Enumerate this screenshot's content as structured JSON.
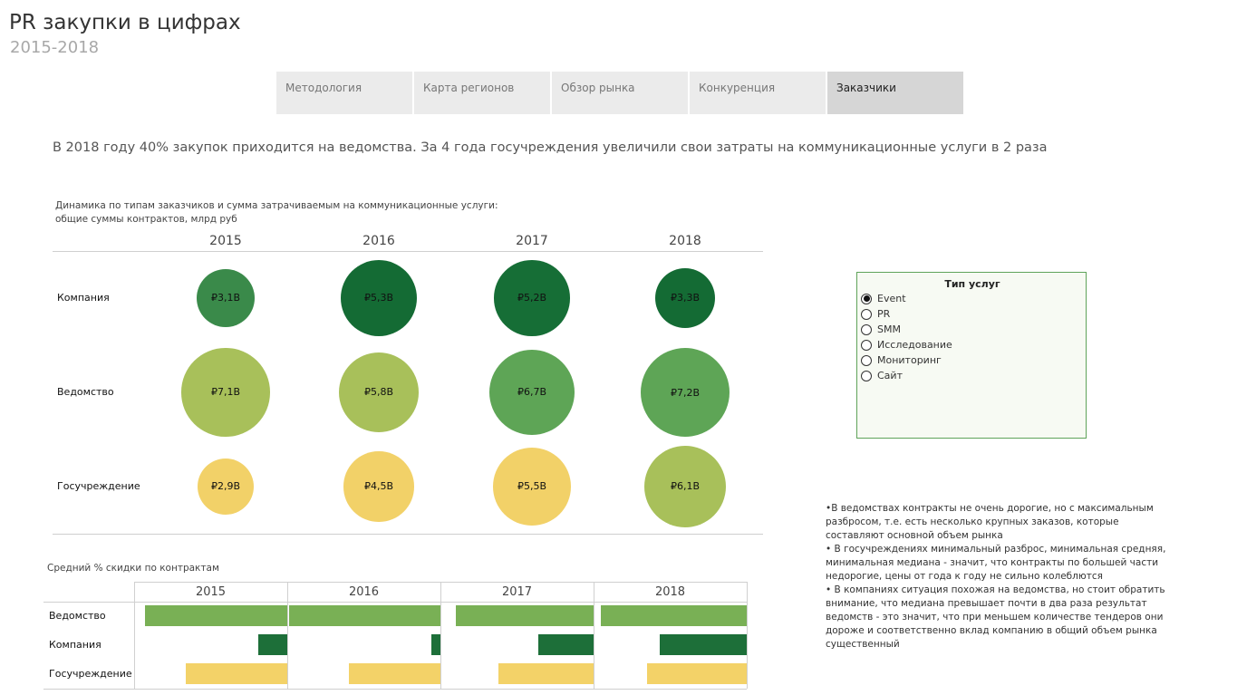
{
  "header": {
    "title": "PR закупки в цифрах",
    "subtitle": "2015-2018"
  },
  "tabs": [
    {
      "label": "Методология",
      "active": false
    },
    {
      "label": "Карта регионов",
      "active": false
    },
    {
      "label": "Обзор рынка",
      "active": false
    },
    {
      "label": "Конкуренция",
      "active": false
    },
    {
      "label": "Заказчики",
      "active": true
    }
  ],
  "headline": "В 2018 году 40% закупок приходится на ведомства. За 4 года госучреждения увеличили свои затраты на коммуникационные услуги в 2 раза",
  "chart_data": [
    {
      "type": "bubble",
      "title_lines": [
        "Динамика по типам заказчиков и сумма затрачиваемым на коммуникационные услуги:",
        "общие суммы контрактов, млрд руб"
      ],
      "columns": [
        "2015",
        "2016",
        "2017",
        "2018"
      ],
      "rows": [
        {
          "name": "Компания",
          "values": [
            3.1,
            5.3,
            5.2,
            3.3
          ],
          "labels": [
            "₽3,1B",
            "₽5,3B",
            "₽5,2B",
            "₽3,3B"
          ],
          "colors": [
            "#3a8a4a",
            "#146b34",
            "#166e36",
            "#146b34"
          ]
        },
        {
          "name": "Ведомство",
          "values": [
            7.1,
            5.8,
            6.7,
            7.2
          ],
          "labels": [
            "₽7,1B",
            "₽5,8B",
            "₽6,7B",
            "₽7,2B"
          ],
          "colors": [
            "#a8c05a",
            "#a8c05a",
            "#5ea556",
            "#5ea556"
          ]
        },
        {
          "name": "Госучреждение",
          "values": [
            2.9,
            4.5,
            5.5,
            6.1
          ],
          "labels": [
            "₽2,9B",
            "₽4,5B",
            "₽5,5B",
            "₽6,1B"
          ],
          "colors": [
            "#f2d168",
            "#f2d168",
            "#f2d168",
            "#a8c05a"
          ]
        }
      ]
    },
    {
      "type": "bar",
      "title": "Средний % скидки по контрактам",
      "columns": [
        "2015",
        "2016",
        "2017",
        "2018"
      ],
      "rows": [
        {
          "name": "Ведомство",
          "color": "#79b055",
          "values": [
            0.93,
            0.99,
            0.9,
            0.95
          ]
        },
        {
          "name": "Компания",
          "color": "#1d6f39",
          "values": [
            0.19,
            0.06,
            0.36,
            0.57
          ]
        },
        {
          "name": "Госучреждение",
          "color": "#f3d268",
          "values": [
            0.66,
            0.6,
            0.62,
            0.65
          ]
        }
      ]
    }
  ],
  "legend": {
    "title": "Тип услуг",
    "options": [
      {
        "label": "Event",
        "selected": true
      },
      {
        "label": "PR",
        "selected": false
      },
      {
        "label": "SMM",
        "selected": false
      },
      {
        "label": "Исследование",
        "selected": false
      },
      {
        "label": "Мониторинг",
        "selected": false
      },
      {
        "label": "Сайт",
        "selected": false
      }
    ]
  },
  "notes": [
    "•В ведомствах контракты не очень дорогие, но с максимальным разбросом, т.е. есть несколько крупных заказов, которые составляют основной объем рынка",
    "• В госучреждениях минимальный разброс, минимальная средняя, минимальная медиана - значит, что контракты по большей части недорогие, цены от года к году не сильно колеблются",
    "• В компаниях ситуация похожая на ведомства, но стоит обратить внимание, что медиана превышает почти в два раза результат ведомств - это значит, что при меньшем количестве тендеров они дороже и соответственно вклад компанию в общий объем рынка существенный"
  ]
}
